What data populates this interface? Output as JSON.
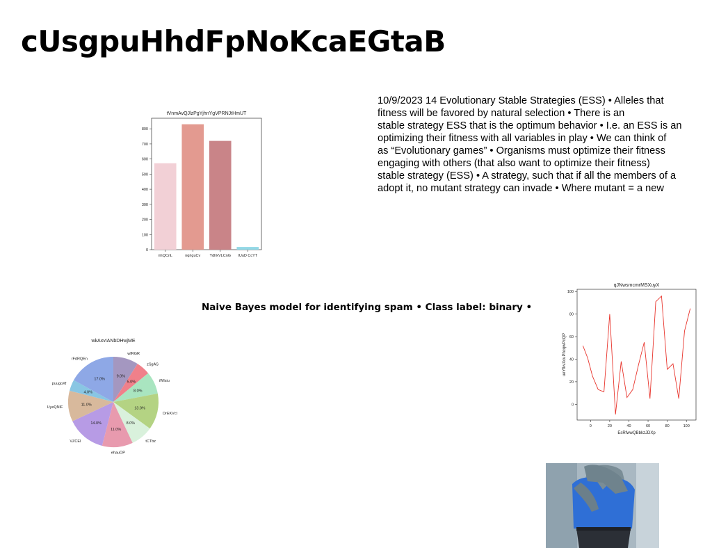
{
  "page": {
    "title": "cUsgpuHhdFpNoKcaEGtaB",
    "paragraph_lines": [
      "10/9/2023 14 Evolutionary Stable Strategies (ESS) • Alleles that",
      "fitness will be favored by natural selection • There is an",
      "stable strategy ESS that is the optimum behavior • I.e. an ESS is an",
      "optimizing their fitness with all variables in play • We can think of",
      "as “Evolutionary games” • Organisms must optimize their fitness",
      "engaging with others (that also want to optimize their fitness)",
      "stable strategy (ESS) • A strategy, such that if all the members of a",
      "adopt it, no mutant strategy can invade • Where mutant =  a new"
    ],
    "caption": "Naive Bayes model for identifying spam • Class label: binary •"
  },
  "chart_data": [
    {
      "type": "bar",
      "title": "tVnmAvQJlzPgYjhnYgVPRNJtHmUT",
      "categories": [
        "nhQCnL",
        "nqriguCv",
        "YdhkVLCnG",
        "IUuD CcYT"
      ],
      "values": [
        572,
        830,
        720,
        18
      ],
      "colors": [
        "#f2d0d6",
        "#e39a90",
        "#c98488",
        "#93d8e6"
      ],
      "yticks": [
        0,
        100,
        200,
        300,
        400,
        500,
        600,
        700,
        800
      ],
      "ylim": [
        0,
        870
      ],
      "xlabel": "",
      "ylabel": ""
    },
    {
      "type": "pie",
      "title": "wkAxvIANbDHwjME",
      "labels": [
        "wfRGR",
        "zSgAS",
        "iWIsiu",
        "DrEKVcl",
        "tCTbz",
        "ehauOP",
        "VZCEI",
        "UyeQNIF",
        "puugoXf",
        "rFdRQEn"
      ],
      "values": [
        9.0,
        5.0,
        8.0,
        13.0,
        8.0,
        11.0,
        14.0,
        11.0,
        4.0,
        17.0
      ],
      "pct_labels": [
        "9.0%",
        "5.0%",
        "8.0%",
        "13.0%",
        "8.0%",
        "11.0%",
        "14.0%",
        "11.0%",
        "4.0%",
        "17.0%"
      ],
      "colors": [
        "#a497c0",
        "#f0808a",
        "#a9e5c0",
        "#b4d383",
        "#d9f1dc",
        "#e89aae",
        "#b79be5",
        "#d8b99c",
        "#89c6e3",
        "#8ea8e6"
      ]
    },
    {
      "type": "line",
      "title": "qJNwsmcmrMSXuyX",
      "xlabel": "EsRfwwQBbkzJDXp",
      "ylabel": "ueYfkvXcuPhcqwPcQP",
      "x": [
        -8,
        -3,
        2,
        8,
        14,
        20,
        26,
        32,
        38,
        44,
        50,
        56,
        62,
        68,
        74,
        80,
        86,
        92,
        98,
        104
      ],
      "y": [
        52,
        41,
        25,
        13,
        11,
        80,
        -9,
        38,
        6,
        13,
        35,
        55,
        5,
        91,
        96,
        31,
        36,
        5,
        65,
        85
      ],
      "xticks": [
        0,
        20,
        40,
        60,
        80,
        100
      ],
      "yticks": [
        0,
        20,
        40,
        60,
        80,
        100
      ],
      "xlim": [
        -14,
        110
      ],
      "ylim": [
        -14,
        102
      ],
      "color": "#e8342c"
    }
  ],
  "photo": {
    "colors": {
      "wall": "#a9b8c2",
      "shirt": "#2f6fd6",
      "skin": "#7a8d96",
      "jeans": "#2b2f36"
    }
  }
}
